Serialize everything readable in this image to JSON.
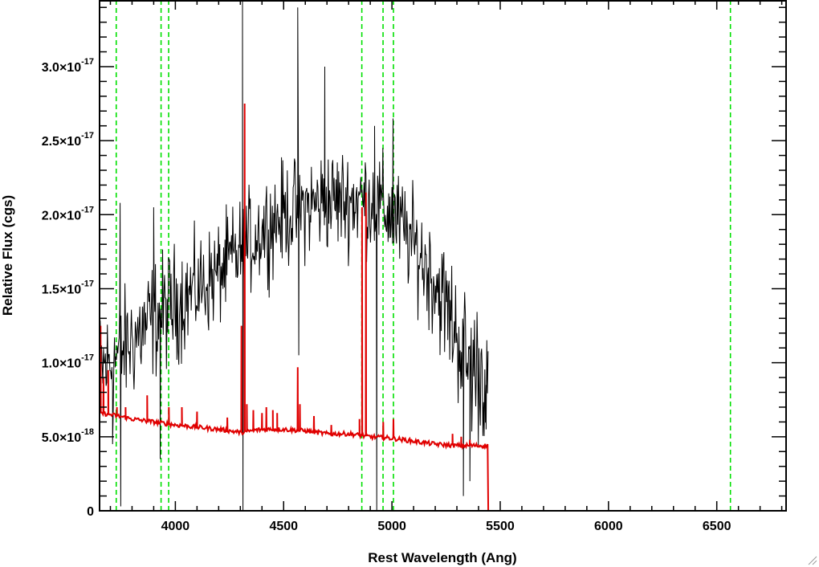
{
  "chart_data": {
    "type": "line",
    "title": "",
    "xlabel": "Rest Wavelength (Ang)",
    "ylabel": "Relative Flux (cgs)",
    "xlim": [
      3650,
      6820
    ],
    "ylim": [
      0,
      3.45e-17
    ],
    "x_ticks": [
      {
        "value": 4000,
        "label": "4000"
      },
      {
        "value": 4500,
        "label": "4500"
      },
      {
        "value": 5000,
        "label": "5000"
      },
      {
        "value": 5500,
        "label": "5500"
      },
      {
        "value": 6000,
        "label": "6000"
      },
      {
        "value": 6500,
        "label": "6500"
      }
    ],
    "y_ticks": [
      {
        "value": 0,
        "mant": "0",
        "exp": ""
      },
      {
        "value": 5e-18,
        "mant": "5.0×10",
        "exp": "-18"
      },
      {
        "value": 1e-17,
        "mant": "1.0×10",
        "exp": "-17"
      },
      {
        "value": 1.5e-17,
        "mant": "1.5×10",
        "exp": "-17"
      },
      {
        "value": 2e-17,
        "mant": "2.0×10",
        "exp": "-17"
      },
      {
        "value": 2.5e-17,
        "mant": "2.5×10",
        "exp": "-17"
      },
      {
        "value": 3e-17,
        "mant": "3.0×10",
        "exp": "-17"
      }
    ],
    "grid": false,
    "series": [
      {
        "color": "#000000",
        "envelope": {
          "x": [
            3650,
            3700,
            3800,
            3900,
            4000,
            4100,
            4200,
            4300,
            4400,
            4500,
            4600,
            4700,
            4800,
            4900,
            5000,
            5100,
            5200,
            5300,
            5350,
            5400,
            5440
          ],
          "mid": [
            9.5e-18,
            1e-17,
            1.15e-17,
            1.3e-17,
            1.4e-17,
            1.5e-17,
            1.6e-17,
            1.75e-17,
            1.9e-17,
            2e-17,
            2.05e-17,
            2.1e-17,
            2.1e-17,
            2.1e-17,
            2e-17,
            1.8e-17,
            1.55e-17,
            1.2e-17,
            1e-17,
            9.5e-18,
            9e-18
          ],
          "amp": [
            4.5e-18,
            4.5e-18,
            4.5e-18,
            4.5e-18,
            4.5e-18,
            4e-18,
            4e-18,
            4e-18,
            4e-18,
            4e-18,
            4e-18,
            4e-18,
            4e-18,
            4e-18,
            4e-18,
            4e-18,
            4.5e-18,
            5e-18,
            5.5e-18,
            5.5e-18,
            5e-18
          ]
        },
        "spikes": [
          {
            "x": 3745,
            "y": 2.08e-17
          },
          {
            "x": 3748,
            "y": 3e-19
          },
          {
            "x": 3710,
            "y": 4.5e-18
          },
          {
            "x": 3900,
            "y": 2.05e-17
          },
          {
            "x": 3930,
            "y": 3.5e-18
          },
          {
            "x": 4310,
            "y": 3.45e-17
          },
          {
            "x": 4312,
            "y": 0
          },
          {
            "x": 4565,
            "y": 3.4e-17
          },
          {
            "x": 4570,
            "y": 1.05e-17
          },
          {
            "x": 4690,
            "y": 3e-17
          },
          {
            "x": 4930,
            "y": 0
          },
          {
            "x": 4920,
            "y": 2.6e-17
          },
          {
            "x": 5005,
            "y": 2.65e-17
          },
          {
            "x": 5330,
            "y": 1e-18
          },
          {
            "x": 5360,
            "y": 2e-18
          },
          {
            "x": 5435,
            "y": 5.5e-18
          }
        ],
        "end_x": 5445
      },
      {
        "color": "#e00000",
        "continuum": {
          "x": [
            3650,
            3700,
            3800,
            3900,
            4000,
            4100,
            4200,
            4300,
            4400,
            4500,
            4600,
            4700,
            4800,
            4900,
            5000,
            5100,
            5200,
            5300,
            5400,
            5440
          ],
          "y": [
            6.6e-18,
            6.5e-18,
            6.2e-18,
            6e-18,
            5.8e-18,
            5.65e-18,
            5.5e-18,
            5.3e-18,
            5.5e-18,
            5.5e-18,
            5.4e-18,
            5.2e-18,
            5.2e-18,
            5e-18,
            4.9e-18,
            4.7e-18,
            4.5e-18,
            4.4e-18,
            4.4e-18,
            4.4e-18
          ]
        },
        "lines": [
          {
            "x": 3655,
            "y": 1.25e-17
          },
          {
            "x": 3668,
            "y": 9e-18
          },
          {
            "x": 3690,
            "y": 9.5e-18
          },
          {
            "x": 3730,
            "y": 7e-18
          },
          {
            "x": 3770,
            "y": 7e-18
          },
          {
            "x": 3870,
            "y": 7.8e-18
          },
          {
            "x": 3970,
            "y": 7e-18
          },
          {
            "x": 4030,
            "y": 7e-18
          },
          {
            "x": 4100,
            "y": 6.7e-18
          },
          {
            "x": 4240,
            "y": 6.3e-18
          },
          {
            "x": 4305,
            "y": 1.25e-17
          },
          {
            "x": 4320,
            "y": 2.75e-17
          },
          {
            "x": 4330,
            "y": 7.2e-18
          },
          {
            "x": 4360,
            "y": 6.8e-18
          },
          {
            "x": 4400,
            "y": 6.6e-18
          },
          {
            "x": 4420,
            "y": 7e-18
          },
          {
            "x": 4450,
            "y": 6.8e-18
          },
          {
            "x": 4470,
            "y": 6.6e-18
          },
          {
            "x": 4565,
            "y": 9.7e-18
          },
          {
            "x": 4575,
            "y": 7.2e-18
          },
          {
            "x": 4640,
            "y": 6.4e-18
          },
          {
            "x": 4720,
            "y": 5.8e-18
          },
          {
            "x": 4850,
            "y": 6.2e-18
          },
          {
            "x": 4862,
            "y": 2.05e-17
          },
          {
            "x": 4880,
            "y": 2.15e-17
          },
          {
            "x": 4960,
            "y": 6e-18
          },
          {
            "x": 5007,
            "y": 6.2e-18
          },
          {
            "x": 5280,
            "y": 5.2e-18
          },
          {
            "x": 5320,
            "y": 5e-18
          },
          {
            "x": 5360,
            "y": 4.8e-18
          }
        ],
        "end_x": 5445,
        "tail_y": 0
      }
    ],
    "reference_lines": {
      "color": "#00e000",
      "style": "dashed",
      "x": [
        3727,
        3934,
        3969,
        4861,
        4959,
        5007,
        6563
      ]
    }
  }
}
